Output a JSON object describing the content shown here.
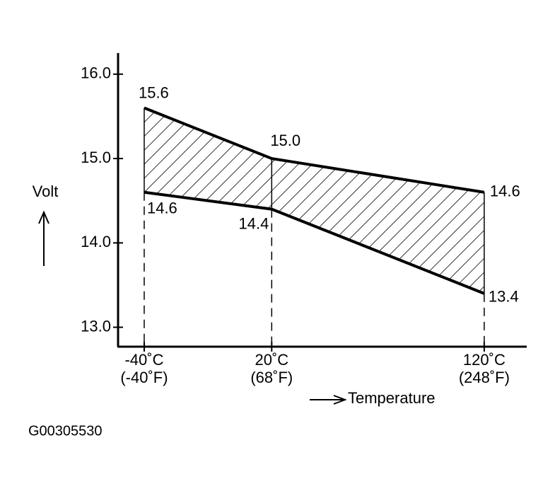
{
  "chart_data": {
    "type": "band",
    "x": [
      -40,
      20,
      120
    ],
    "series": [
      {
        "values": [
          15.6,
          15.0,
          14.6
        ],
        "value_labels": [
          "15.6",
          "15.0",
          "14.6"
        ],
        "color": "#000000"
      },
      {
        "values": [
          14.6,
          14.4,
          13.4
        ],
        "value_labels": [
          "14.6",
          "14.4",
          "13.4"
        ],
        "color": "#000000"
      }
    ],
    "xlim": [
      -52.3,
      140
    ],
    "ylim": [
      12.77,
      16.25
    ],
    "xticks": [
      {
        "value": -40,
        "label": "-40˚C"
      },
      {
        "value": 20,
        "label": "20˚C"
      },
      {
        "value": 120,
        "label": "120˚C"
      }
    ],
    "xtick_sublabels": [
      "(-40˚F)",
      "(68˚F)",
      "(248˚F)"
    ],
    "yticks": [
      {
        "value": 13,
        "label": "13.0"
      },
      {
        "value": 14,
        "label": "14.0"
      },
      {
        "value": 15,
        "label": "15.0"
      },
      {
        "value": 16,
        "label": "16.0"
      }
    ],
    "ylabel": "Volt",
    "xlabel": "Temperature",
    "footnote": "G00305530"
  }
}
